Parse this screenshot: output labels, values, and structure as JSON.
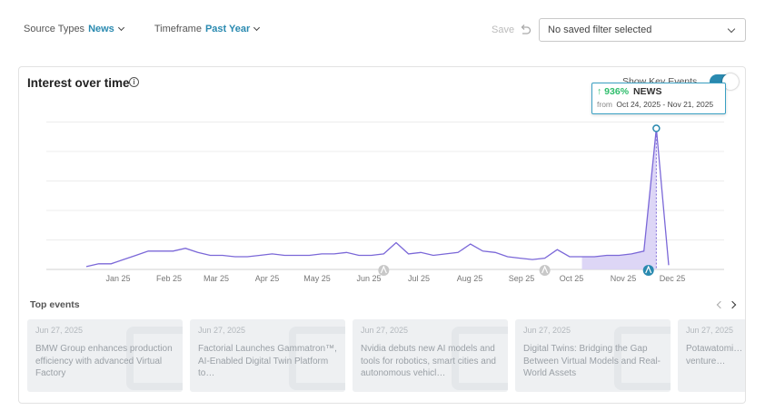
{
  "filters": {
    "source_types": {
      "label": "Source Types",
      "value": "News"
    },
    "timeframe": {
      "label": "Timeframe",
      "value": "Past Year"
    }
  },
  "save_label": "Save",
  "saved_filter": {
    "value": "No saved filter selected"
  },
  "card": {
    "title": "Interest over time",
    "info_icon_glyph": "i",
    "show_key_events_label": "Show Key Events",
    "show_key_events_enabled": true
  },
  "tooltip": {
    "arrow_glyph": "↑",
    "percent": "936%",
    "label": "NEWS",
    "from_label": "from",
    "range": "Oct 24, 2025 - Nov 21, 2025"
  },
  "chart_data": {
    "type": "line",
    "x_tick_labels": [
      "Jan 25",
      "Feb 25",
      "Mar 25",
      "Apr 25",
      "May 25",
      "Jun 25",
      "Jul 25",
      "Aug 25",
      "Sep 25",
      "Oct 25",
      "Nov 25",
      "Dec 25"
    ],
    "values": [
      2,
      4,
      4,
      7,
      10,
      13,
      13,
      13,
      15,
      12,
      10,
      10,
      9,
      9,
      10,
      11,
      10,
      10,
      10,
      11,
      11,
      12,
      10,
      10,
      11,
      19,
      11,
      12,
      10,
      11,
      12,
      18,
      13,
      12,
      9,
      8,
      7,
      8,
      14,
      9,
      9,
      9,
      10,
      10,
      11,
      13,
      100,
      3
    ],
    "ylim": [
      0,
      110
    ],
    "highlight_start_index": 40,
    "peak_index": 46,
    "key_event_indices": [
      24,
      37
    ],
    "peak_marker_index": 45,
    "grid": true,
    "accent_color": "#7b68d8",
    "fill_color": "#d9d2f5"
  },
  "top_events": {
    "title": "Top events",
    "items": [
      {
        "date": "Jun 27, 2025",
        "headline": "BMW Group enhances production efficiency with advanced Virtual Factory"
      },
      {
        "date": "Jun 27, 2025",
        "headline": "Factorial Launches Gammatron™, AI-Enabled Digital Twin Platform to…"
      },
      {
        "date": "Jun 27, 2025",
        "headline": "Nvidia debuts new AI models and tools for robotics, smart cities and autonomous vehicl…"
      },
      {
        "date": "Jun 27, 2025",
        "headline": "Digital Twins: Bridging the Gap Between Virtual Models and Real-World Assets"
      },
      {
        "date": "Jun 27, 2025",
        "headline": "Potawatomi… and UltiSim… joint venture…"
      }
    ]
  }
}
